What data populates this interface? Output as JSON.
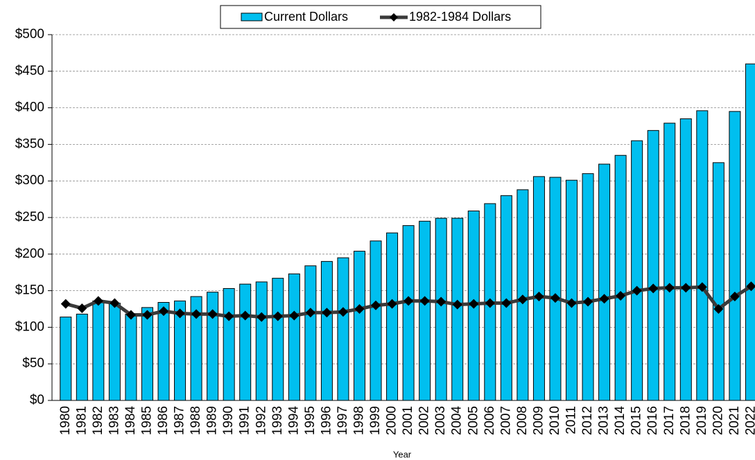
{
  "chart_data": {
    "type": "bar_line",
    "x_label": "Year",
    "categories": [
      "1980",
      "1981",
      "1982",
      "1983",
      "1984",
      "1985",
      "1986",
      "1987",
      "1988",
      "1989",
      "1990",
      "1991",
      "1992",
      "1993",
      "1994",
      "1995",
      "1996",
      "1997",
      "1998",
      "1999",
      "2000",
      "2001",
      "2002",
      "2003",
      "2004",
      "2005",
      "2006",
      "2007",
      "2008",
      "2009",
      "2010",
      "2011",
      "2012",
      "2013",
      "2014",
      "2015",
      "2016",
      "2017",
      "2018",
      "2019",
      "2020",
      "2021",
      "2022"
    ],
    "series": [
      {
        "name": "Current Dollars",
        "type": "bar",
        "color": "#00bfef",
        "values": [
          114,
          118,
          136,
          133,
          118,
          127,
          134,
          136,
          142,
          148,
          153,
          159,
          162,
          167,
          173,
          184,
          190,
          195,
          204,
          218,
          229,
          239,
          245,
          249,
          249,
          259,
          269,
          280,
          288,
          306,
          305,
          301,
          310,
          323,
          335,
          355,
          369,
          379,
          385,
          396,
          325,
          395,
          460
        ]
      },
      {
        "name": "1982-1984 Dollars",
        "type": "line",
        "color": "#3a3a3a",
        "marker_color": "#000000",
        "values": [
          132,
          126,
          136,
          133,
          117,
          117,
          122,
          119,
          118,
          118,
          115,
          116,
          114,
          115,
          116,
          120,
          120,
          121,
          125,
          130,
          132,
          136,
          136,
          135,
          131,
          132,
          133,
          133,
          138,
          142,
          140,
          133,
          135,
          139,
          143,
          150,
          153,
          154,
          154,
          155,
          125,
          142,
          156
        ]
      }
    ],
    "ylim": [
      0,
      500
    ],
    "yticks": [
      {
        "value": 0,
        "label": "$0"
      },
      {
        "value": 50,
        "label": "$50"
      },
      {
        "value": 100,
        "label": "$100"
      },
      {
        "value": 150,
        "label": "$150"
      },
      {
        "value": 200,
        "label": "$200"
      },
      {
        "value": 250,
        "label": "$250"
      },
      {
        "value": 300,
        "label": "$300"
      },
      {
        "value": 350,
        "label": "$350"
      },
      {
        "value": 400,
        "label": "$400"
      },
      {
        "value": 450,
        "label": "$450"
      },
      {
        "value": 500,
        "label": "$500"
      }
    ],
    "grid": true,
    "legend": "top"
  }
}
